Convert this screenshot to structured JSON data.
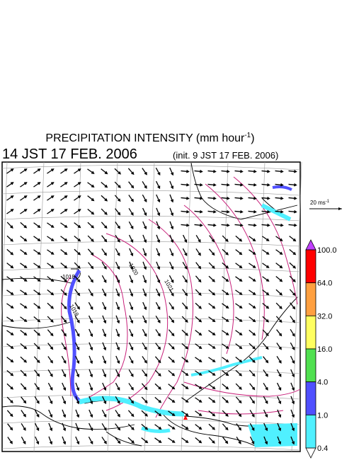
{
  "title": {
    "text": "PRECIPITATION INTENSITY (mm hour",
    "sup": "-1",
    "end": ")"
  },
  "valid_time": "14 JST 17 FEB. 2006",
  "init_time": "(init. 9 JST 17 FEB. 2006)",
  "wind_scale": {
    "label": "20 ms",
    "sup": "-1"
  },
  "colorbar": {
    "labels": [
      "100.0",
      "64.0",
      "32.0",
      "16.0",
      "4.0",
      "1.0",
      "0.4"
    ],
    "colors": [
      "#ff0000",
      "#ffa040",
      "#ffff60",
      "#50e050",
      "#5050ff",
      "#50f0ff"
    ]
  },
  "isobar_labels": [
    "1018",
    "1019",
    "1020",
    "1021"
  ]
}
